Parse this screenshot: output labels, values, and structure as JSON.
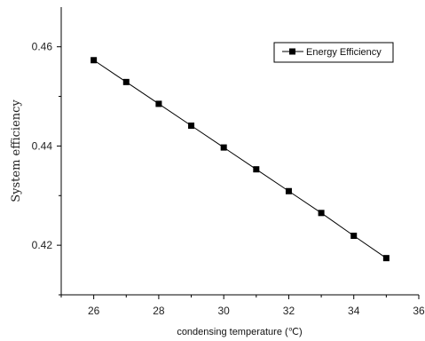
{
  "chart_data": {
    "type": "line",
    "xlabel": "condensing temperature (℃)",
    "ylabel": "System efficiency",
    "xlim": [
      25,
      36
    ],
    "ylim": [
      0.41,
      0.468
    ],
    "x_ticks": [
      26,
      28,
      30,
      32,
      34,
      36
    ],
    "x_tick_labels": [
      "26",
      "28",
      "30",
      "32",
      "34",
      "36"
    ],
    "y_ticks": [
      0.42,
      0.44,
      0.46
    ],
    "y_tick_labels": [
      "0.42",
      "0.44",
      "0.46"
    ],
    "grid": false,
    "legend_position": "top-right",
    "series": [
      {
        "name": "Energy Efficiency",
        "marker": "square",
        "color": "#000000",
        "x": [
          26,
          27,
          28,
          29,
          30,
          31,
          32,
          33,
          34,
          35
        ],
        "y": [
          0.4573,
          0.4529,
          0.4485,
          0.4441,
          0.4397,
          0.4353,
          0.4309,
          0.4265,
          0.4219,
          0.4174
        ]
      }
    ]
  }
}
